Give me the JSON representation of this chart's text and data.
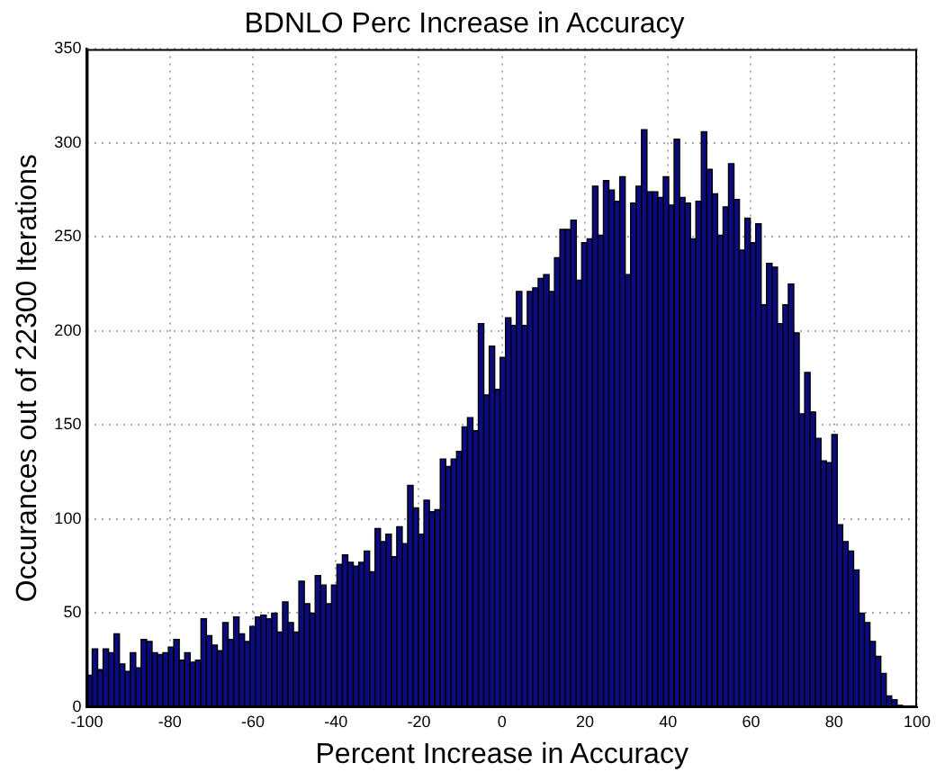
{
  "chart_data": {
    "type": "histogram",
    "title": "BDNLO Perc Increase in Accuracy",
    "xlabel": "Percent Increase in Accuracy",
    "ylabel": "Occurances out of 22300 Iterations",
    "bins": [
      -100,
      -98.69,
      -97.38,
      -96.07,
      -94.76,
      -93.45,
      -92.14,
      -90.83,
      -89.52,
      -88.21,
      -86.9,
      -85.59,
      -84.28,
      -82.97,
      -81.66,
      -80.35,
      -79.04,
      -77.73,
      -76.42,
      -75.11,
      -73.8,
      -72.49,
      -71.18,
      -69.87,
      -68.56,
      -67.25,
      -65.94,
      -64.63,
      -63.32,
      -62.01,
      -60.7,
      -59.39,
      -58.08,
      -56.77,
      -55.46,
      -54.15,
      -52.84,
      -51.53,
      -50.22,
      -48.91,
      -47.6,
      -46.29,
      -44.98,
      -43.67,
      -42.36,
      -41.05,
      -39.74,
      -38.43,
      -37.12,
      -35.81,
      -34.5,
      -33.19,
      -31.88,
      -30.57,
      -29.26,
      -27.95,
      -26.64,
      -25.33,
      -24.02,
      -22.71,
      -21.4,
      -20.09,
      -18.78,
      -17.47,
      -16.16,
      -14.85,
      -13.54,
      -12.23,
      -10.92,
      -9.61,
      -8.3,
      -6.99,
      -5.68,
      -4.37,
      -3.06,
      -1.75,
      -0.44,
      0.87,
      2.18,
      3.49,
      4.8,
      6.11,
      7.42,
      8.73,
      10.04,
      11.35,
      12.66,
      13.97,
      15.28,
      16.59,
      17.9,
      19.21,
      20.52,
      21.83,
      23.14,
      24.45,
      25.76,
      27.07,
      28.38,
      29.69,
      31,
      32.31,
      33.62,
      34.93,
      36.24,
      37.55,
      38.86,
      40.17,
      41.48,
      42.79,
      44.1,
      45.41,
      46.72,
      48.03,
      49.34,
      50.65,
      51.96,
      53.27,
      54.58,
      55.89,
      57.2,
      58.51,
      59.82,
      61.13,
      62.44,
      63.75,
      65.06,
      66.37,
      67.68,
      68.99,
      70.3,
      71.61,
      72.92,
      74.23,
      75.54,
      76.85,
      78.16,
      79.47,
      80.78,
      82.09,
      83.4,
      84.71,
      86.02,
      87.33,
      88.64,
      89.95,
      91.26,
      92.57,
      93.88,
      95.19,
      96.5
    ],
    "values": [
      17,
      31,
      20,
      31,
      29,
      39,
      23,
      19,
      29,
      21,
      36,
      35,
      29,
      28,
      29,
      32,
      36,
      25,
      29,
      24,
      25,
      47,
      38,
      33,
      30,
      45,
      36,
      48,
      39,
      35,
      43,
      48,
      49,
      47,
      50,
      40,
      56,
      45,
      40,
      67,
      55,
      50,
      70,
      65,
      55,
      65,
      76,
      81,
      77,
      75,
      77,
      83,
      72,
      95,
      88,
      92,
      80,
      96,
      87,
      118,
      106,
      92,
      110,
      104,
      105,
      132,
      128,
      132,
      136,
      149,
      154,
      147,
      204,
      166,
      192,
      169,
      186,
      207,
      203,
      221,
      203,
      221,
      223,
      228,
      230,
      221,
      239,
      254,
      254,
      259,
      227,
      247,
      249,
      277,
      251,
      280,
      275,
      269,
      282,
      230,
      268,
      277,
      307,
      274,
      274,
      271,
      282,
      267,
      302,
      271,
      268,
      249,
      269,
      306,
      286,
      273,
      251,
      266,
      289,
      270,
      243,
      260,
      247,
      257,
      214,
      236,
      234,
      204,
      214,
      225,
      199,
      156,
      178,
      157,
      143,
      131,
      130,
      145,
      97,
      88,
      83,
      73,
      50,
      45,
      35,
      27,
      18,
      6,
      4,
      1
    ],
    "color": "#0b0b80",
    "xlim": [
      -100,
      100
    ],
    "ylim": [
      0,
      350
    ],
    "xticks": [
      -100,
      -80,
      -60,
      -40,
      -20,
      0,
      20,
      40,
      60,
      80,
      100
    ],
    "yticks": [
      0,
      50,
      100,
      150,
      200,
      250,
      300,
      350
    ],
    "grid": true
  }
}
